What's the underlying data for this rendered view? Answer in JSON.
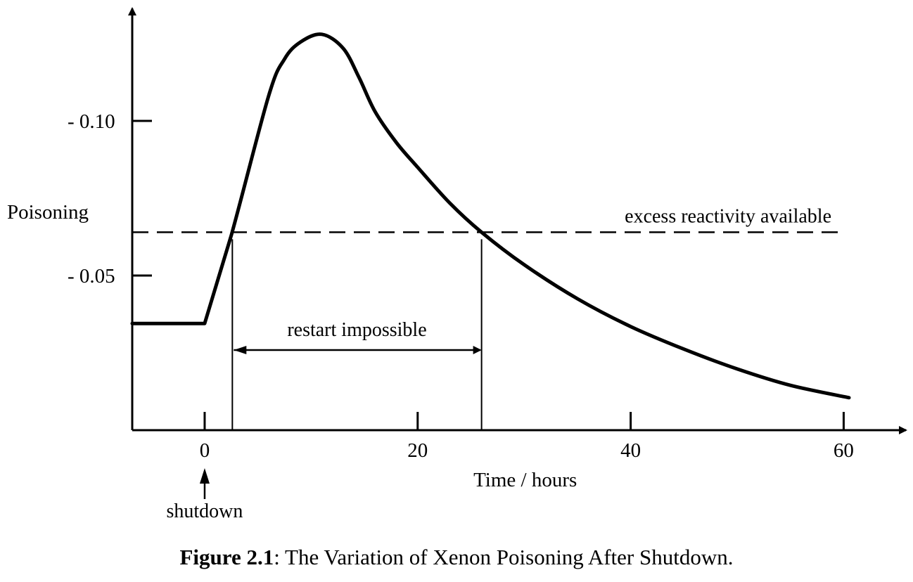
{
  "chart_data": {
    "type": "line",
    "title": "",
    "xlabel": "Time / hours",
    "ylabel": "Poisoning",
    "xlim": [
      -6.8,
      64
    ],
    "ylim": [
      0.0,
      0.13
    ],
    "x_ticks": [
      {
        "value": 0,
        "label": "0"
      },
      {
        "value": 20,
        "label": "20"
      },
      {
        "value": 40,
        "label": "40"
      },
      {
        "value": 60,
        "label": "60"
      }
    ],
    "y_ticks": [
      {
        "value": 0.05,
        "label": "- 0.05"
      },
      {
        "value": 0.1,
        "label": "- 0.10"
      }
    ],
    "grid": false,
    "series": [
      {
        "points": [
          [
            -6.8,
            0.0345
          ],
          [
            0.0,
            0.0345
          ],
          [
            2.5,
            0.063
          ],
          [
            6.0,
            0.108
          ],
          [
            7.5,
            0.12
          ],
          [
            9.0,
            0.1255
          ],
          [
            11.0,
            0.128
          ],
          [
            13.0,
            0.1235
          ],
          [
            14.5,
            0.114
          ],
          [
            16.0,
            0.103
          ],
          [
            18.0,
            0.093
          ],
          [
            20.0,
            0.085
          ],
          [
            23.0,
            0.0735
          ],
          [
            26.0,
            0.064
          ],
          [
            30.0,
            0.0535
          ],
          [
            35.0,
            0.0425
          ],
          [
            40.0,
            0.0335
          ],
          [
            45.0,
            0.0262
          ],
          [
            50.0,
            0.0198
          ],
          [
            55.0,
            0.0145
          ],
          [
            60.5,
            0.0105
          ]
        ]
      }
    ],
    "reference_line": {
      "y": 0.064,
      "label": "excess reactivity available",
      "style": "dashed"
    },
    "interval_annotation": {
      "x_start": 2.6,
      "x_end": 26.0,
      "label": "restart impossible"
    },
    "event_annotation": {
      "x": 0,
      "label": "shutdown"
    }
  },
  "caption": {
    "bold": "Figure 2.1",
    "text": ": The Variation of Xenon Poisoning After Shutdown."
  }
}
